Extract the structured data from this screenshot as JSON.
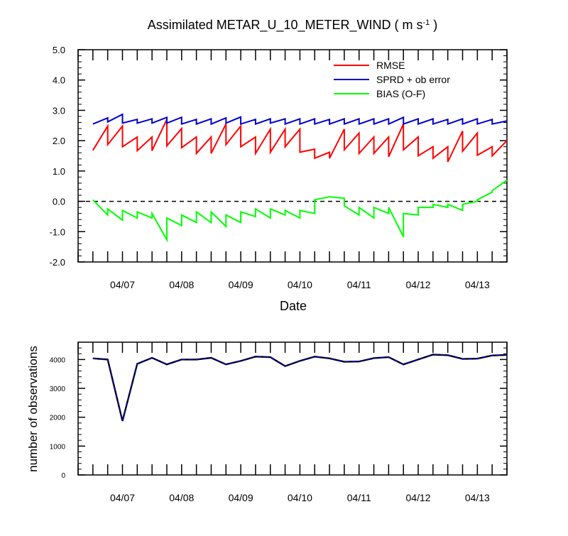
{
  "title_main": "Assimilated METAR_U_10_METER_WIND ( m s",
  "title_sup": "-1",
  "title_close": " )",
  "colors": {
    "rmse": "#ff0000",
    "spread": "#0000cc",
    "bias": "#00ff00",
    "axes": "#000000"
  },
  "chart_data": [
    {
      "type": "line",
      "xlabel": "Date",
      "ylabel": "",
      "ylim": [
        -2.0,
        5.0
      ],
      "yticks": [
        "-2.0",
        "-1.0",
        "0.0",
        "1.0",
        "2.0",
        "3.0",
        "4.0",
        "5.0"
      ],
      "x_tick_labels": [
        "04/07",
        "04/08",
        "04/09",
        "04/10",
        "04/11",
        "04/12",
        "04/13"
      ],
      "xlim": [
        "04/06 12:00",
        "04/13 18:00"
      ],
      "zero_line": "dashed",
      "legend_position": "top-right",
      "x": [
        0,
        0.25,
        0.25,
        0.5,
        0.5,
        0.75,
        0.75,
        1,
        1,
        1.25,
        1.25,
        1.5,
        1.5,
        1.75,
        1.75,
        2,
        2,
        2.25,
        2.25,
        2.5,
        2.5,
        2.75,
        2.75,
        3,
        3,
        3.25,
        3.25,
        3.5,
        3.5,
        3.75,
        3.75,
        4,
        4,
        4.25,
        4.25,
        4.5,
        4.5,
        4.75,
        4.75,
        5,
        5,
        5.25,
        5.25,
        5.5,
        5.5,
        5.75,
        5.75,
        6,
        6,
        6.25,
        6.25,
        6.5,
        6.5,
        6.75,
        6.75,
        7,
        7
      ],
      "x_units": "days since first plotted point",
      "series": [
        {
          "name": "RMSE",
          "values": [
            1.68,
            2.48,
            1.87,
            2.48,
            1.8,
            2.12,
            1.67,
            2.12,
            1.67,
            2.7,
            1.83,
            2.4,
            1.77,
            2.12,
            1.58,
            2.12,
            1.58,
            2.55,
            1.87,
            2.48,
            1.8,
            2.12,
            1.58,
            2.38,
            1.62,
            2.38,
            1.8,
            2.38,
            1.62,
            1.72,
            1.42,
            1.62,
            1.42,
            2.38,
            1.7,
            2.25,
            1.58,
            2.12,
            1.58,
            2.12,
            1.47,
            2.55,
            1.7,
            2.12,
            1.5,
            1.8,
            1.42,
            1.8,
            1.3,
            2.32,
            1.65,
            2.25,
            1.52,
            1.8,
            1.5,
            2.0,
            2.0
          ]
        },
        {
          "name": "SPRD + ob error",
          "values": [
            2.55,
            2.75,
            2.62,
            2.87,
            2.58,
            2.7,
            2.58,
            2.72,
            2.58,
            2.77,
            2.58,
            2.77,
            2.55,
            2.7,
            2.55,
            2.72,
            2.55,
            2.75,
            2.58,
            2.78,
            2.55,
            2.7,
            2.55,
            2.72,
            2.58,
            2.72,
            2.55,
            2.72,
            2.55,
            2.72,
            2.55,
            2.7,
            2.55,
            2.72,
            2.55,
            2.72,
            2.55,
            2.72,
            2.55,
            2.72,
            2.55,
            2.77,
            2.55,
            2.72,
            2.55,
            2.72,
            2.55,
            2.7,
            2.55,
            2.72,
            2.55,
            2.72,
            2.55,
            2.7,
            2.55,
            2.65,
            2.65
          ]
        },
        {
          "name": "BIAS (O-F)",
          "values": [
            0.05,
            -0.45,
            -0.25,
            -0.62,
            -0.3,
            -0.55,
            -0.35,
            -0.55,
            -0.4,
            -1.27,
            -0.55,
            -0.8,
            -0.45,
            -0.7,
            -0.35,
            -0.7,
            -0.35,
            -0.83,
            -0.45,
            -0.7,
            -0.35,
            -0.5,
            -0.25,
            -0.55,
            -0.25,
            -0.45,
            -0.3,
            -0.55,
            -0.3,
            -0.4,
            0.05,
            0.15,
            0.15,
            0.1,
            -0.15,
            -0.45,
            -0.2,
            -0.55,
            -0.2,
            -0.4,
            -0.2,
            -1.17,
            -0.4,
            -0.45,
            -0.2,
            -0.2,
            -0.1,
            -0.2,
            -0.1,
            -0.3,
            -0.1,
            0.0,
            0.05,
            0.3,
            0.35,
            0.7,
            0.7
          ]
        }
      ]
    },
    {
      "type": "line",
      "xlabel": "",
      "ylabel": "number of observations",
      "ylim": [
        0,
        4600
      ],
      "yticks": [
        "0",
        "1000",
        "2000",
        "3000",
        "4000"
      ],
      "x_tick_labels": [
        "04/07",
        "04/08",
        "04/09",
        "04/10",
        "04/11",
        "04/12",
        "04/13"
      ],
      "xlim": [
        "04/06 12:00",
        "04/13 18:00"
      ],
      "x": [
        0,
        0.25,
        0.5,
        0.75,
        1,
        1.25,
        1.5,
        1.75,
        2,
        2.25,
        2.5,
        2.75,
        3,
        3.25,
        3.5,
        3.75,
        4,
        4.25,
        4.5,
        4.75,
        5,
        5.25,
        5.5,
        5.75,
        6,
        6.25,
        6.5,
        6.75,
        7
      ],
      "x_units": "days since first plotted point",
      "series": [
        {
          "name": "observations",
          "values": [
            4040,
            4000,
            1870,
            3850,
            4060,
            3830,
            4000,
            4000,
            4060,
            3830,
            3950,
            4100,
            4080,
            3770,
            3950,
            4100,
            4040,
            3920,
            3930,
            4050,
            4080,
            3830,
            4000,
            4170,
            4150,
            4020,
            4030,
            4140,
            4160
          ]
        }
      ]
    }
  ]
}
